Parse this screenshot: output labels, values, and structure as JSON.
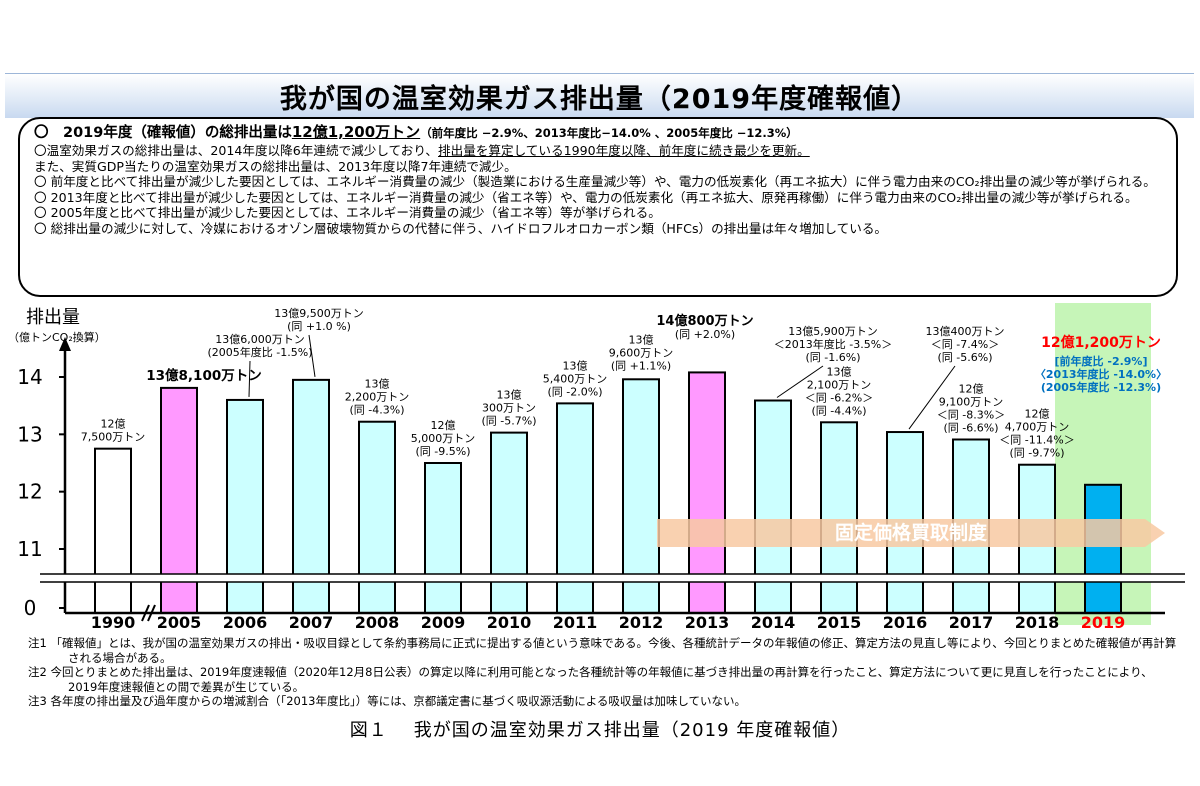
{
  "title": "我が国の温室効果ガス排出量（2019年度確報値）",
  "summary": {
    "headline_prefix": "〇　2019年度（確報値）の総排出量は",
    "headline_total": "12億1,200万トン",
    "headline_detail": "（前年度比 −2.9%、2013年度比−14.0% 、2005年度比 −12.3%）",
    "bullet1_a": "〇温室効果ガスの総排出量は、2014年度以降6年連続で減少しており、",
    "bullet1_b": "排出量を算定している1990年度以降、前年度に続き最少を更新。",
    "bullet1_c": "また、実質GDP当たりの温室効果ガスの総排出量は、2013年度以降7年連続で減少。",
    "bullet2": "〇 前年度と比べて排出量が減少した要因としては、エネルギー消費量の減少（製造業における生産量減少等）や、電力の低炭素化（再エネ拡大）に伴う電力由来のCO₂排出量の減少等が挙げられる。",
    "bullet3": "〇 2013年度と比べて排出量が減少した要因としては、エネルギー消費量の減少（省エネ等）や、電力の低炭素化（再エネ拡大、原発再稼働）に伴う電力由来のCO₂排出量の減少等が挙げられる。",
    "bullet4": "〇 2005年度と比べて排出量が減少した要因としては、エネルギー消費量の減少（省エネ等）等が挙げられる。",
    "bullet5": "〇 総排出量の減少に対して、冷媒におけるオゾン層破壊物質からの代替に伴う、ハイドロフルオロカーボン類（HFCs）の排出量は年々増加している。"
  },
  "chart_data": {
    "type": "bar",
    "ylabel": "排出量",
    "yunit": "（億トンCO₂換算）",
    "yticks": [
      "0",
      "11",
      "12",
      "13",
      "14"
    ],
    "ylim": [
      10.4,
      14.45
    ],
    "axis_break": true,
    "categories": [
      "1990",
      "2005",
      "2006",
      "2007",
      "2008",
      "2009",
      "2010",
      "2011",
      "2012",
      "2013",
      "2014",
      "2015",
      "2016",
      "2017",
      "2018",
      "2019"
    ],
    "values": [
      12.75,
      13.81,
      13.6,
      13.95,
      13.22,
      12.5,
      13.03,
      13.54,
      13.96,
      14.08,
      13.59,
      13.21,
      13.04,
      12.91,
      12.47,
      12.12
    ],
    "bar_kind": [
      "white",
      "pink",
      "cyan",
      "cyan",
      "cyan",
      "cyan",
      "cyan",
      "cyan",
      "cyan",
      "pink",
      "cyan",
      "cyan",
      "cyan",
      "cyan",
      "cyan",
      "blue"
    ],
    "colors": {
      "white": "#ffffff",
      "pink": "#ff99ff",
      "cyan": "#ccffff",
      "blue": "#00b0f0",
      "highlight": "#c6f5b8",
      "arrow": "#f8c9a2",
      "red": "#ff0000",
      "blue_text": "#0070c0"
    },
    "labels": [
      [
        "12億",
        "7,500万トン"
      ],
      [
        "13億8,100万トン"
      ],
      [
        "13億6,000万トン",
        "(2005年度比 -1.5%)"
      ],
      [
        "13億9,500万トン",
        "(同 +1.0 %)"
      ],
      [
        "13億",
        "2,200万トン",
        "(同 -4.3%)"
      ],
      [
        "12億",
        "5,000万トン",
        "(同 -9.5%)"
      ],
      [
        "13億",
        "300万トン",
        "(同 -5.7%)"
      ],
      [
        "13億",
        "5,400万トン",
        "(同 -2.0%)"
      ],
      [
        "13億",
        "9,600万トン",
        "(同 +1.1%)"
      ],
      [
        "14億800万トン",
        "(同 +2.0%)"
      ],
      [
        "13億5,900万トン",
        "＜2013年度比 -3.5%＞",
        "(同 -1.6%)"
      ],
      [
        "13億",
        "2,100万トン",
        "＜同 -6.2%＞",
        "(同 -4.4%)"
      ],
      [
        "13億400万トン",
        "＜同 -7.4%＞",
        "(同 -5.6%)"
      ],
      [
        "12億",
        "9,100万トン",
        "＜同 -8.3%＞",
        "(同 -6.6%)"
      ],
      [
        "12億",
        "4,700万トン",
        "＜同 -11.4%＞",
        "(同 -9.7%)"
      ],
      [
        "12億1,200万トン",
        "[前年度比 -2.9%]",
        "〈2013年度比 -14.0%〉",
        "(2005年度比 -12.3%)"
      ]
    ],
    "annotation": "固定価格買取制度"
  },
  "notes": [
    "注1 「確報値」とは、我が国の温室効果ガスの排出・吸収目録として条約事務局に正式に提出する値という意味である。今後、各種統計データの年報値の修正、算定方法の見直し等により、今回とりまとめた確報値が再計算される場合がある。",
    "注2 今回とりまとめた排出量は、2019年度速報値（2020年12月8日公表）の算定以降に利用可能となった各種統計等の年報値に基づき排出量の再計算を行ったこと、算定方法について更に見直しを行ったことにより、2019年度速報値との間で差異が生じている。",
    "注3 各年度の排出量及び過年度からの増減割合（「2013年度比」）等には、京都議定書に基づく吸収源活動による吸収量は加味していない。"
  ],
  "caption_label": "図１",
  "caption_text": "我が国の温室効果ガス排出量（2019 年度確報値）"
}
